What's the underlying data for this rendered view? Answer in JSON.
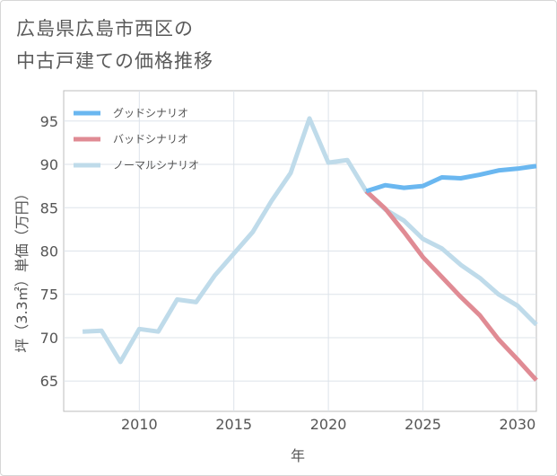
{
  "title_line1": "広島県広島市西区の",
  "title_line2": "中古戸建ての価格推移",
  "chart_data": {
    "type": "line",
    "title": "広島県広島市西区の中古戸建ての価格推移",
    "xlabel": "年",
    "ylabel": "坪（3.3㎡）単価（万円）",
    "xlim": [
      2006,
      2031
    ],
    "ylim": [
      61.5,
      98.5
    ],
    "xticks": [
      2010,
      2015,
      2020,
      2025,
      2030
    ],
    "yticks": [
      65,
      70,
      75,
      80,
      85,
      90,
      95
    ],
    "grid": true,
    "legend_position": "top-left",
    "series": [
      {
        "name": "グッドシナリオ",
        "color": "#6ab7f0",
        "x": [
          2022,
          2023,
          2024,
          2025,
          2026,
          2027,
          2028,
          2029,
          2030,
          2031
        ],
        "values": [
          86.9,
          87.6,
          87.3,
          87.5,
          88.5,
          88.4,
          88.8,
          89.3,
          89.5,
          89.8
        ]
      },
      {
        "name": "バッドシナリオ",
        "color": "#e08b94",
        "x": [
          2022,
          2023,
          2024,
          2025,
          2026,
          2027,
          2028,
          2029,
          2030,
          2031
        ],
        "values": [
          86.9,
          84.9,
          82.2,
          79.3,
          77.0,
          74.7,
          72.6,
          69.8,
          67.5,
          65.1
        ]
      },
      {
        "name": "ノーマルシナリオ",
        "color": "#bfdbea",
        "x": [
          2007,
          2008,
          2009,
          2010,
          2011,
          2012,
          2013,
          2014,
          2015,
          2016,
          2017,
          2018,
          2019,
          2020,
          2021,
          2022,
          2023,
          2024,
          2025,
          2026,
          2027,
          2028,
          2029,
          2030,
          2031
        ],
        "values": [
          70.7,
          70.8,
          67.2,
          71.0,
          70.7,
          74.4,
          74.1,
          77.2,
          79.7,
          82.2,
          85.8,
          89.0,
          95.3,
          90.2,
          90.5,
          86.9,
          84.8,
          83.5,
          81.4,
          80.3,
          78.4,
          76.9,
          75.0,
          73.7,
          71.5
        ]
      }
    ]
  }
}
